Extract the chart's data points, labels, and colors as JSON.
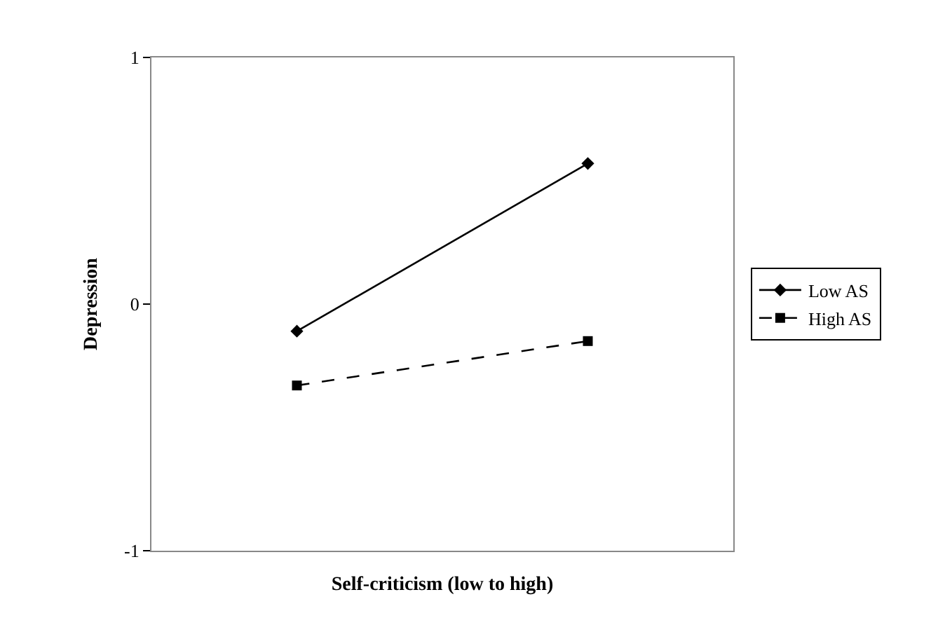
{
  "chart_data": {
    "type": "line",
    "xlabel": "Self-criticism (low to high)",
    "ylabel": "Depression",
    "categories": [
      null,
      null
    ],
    "series": [
      {
        "name": "Low AS",
        "color": "#000000",
        "values": [
          -0.11,
          0.57
        ],
        "marker": "diamond",
        "line_style": "solid"
      },
      {
        "name": "High AS",
        "color": "#000000",
        "values": [
          -0.33,
          -0.15
        ],
        "marker": "square",
        "line_style": "dashed"
      }
    ],
    "ylim": [
      -1,
      1
    ],
    "yticks": [
      -1,
      0,
      1
    ],
    "legend": "right"
  }
}
